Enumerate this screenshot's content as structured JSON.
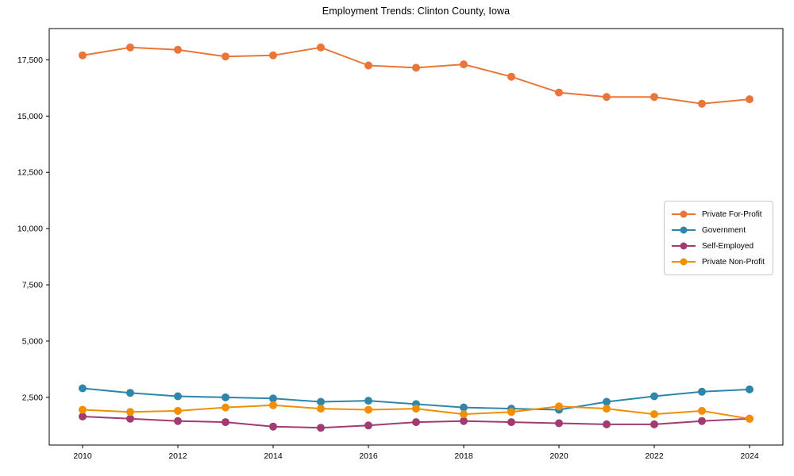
{
  "chart_data": {
    "type": "line",
    "title": "Employment Trends: Clinton County, Iowa",
    "xlabel": "",
    "ylabel": "",
    "x": [
      2010,
      2011,
      2012,
      2013,
      2014,
      2015,
      2016,
      2017,
      2018,
      2019,
      2020,
      2021,
      2022,
      2023,
      2024
    ],
    "series": [
      {
        "name": "Private For-Profit",
        "color": "#E8763B",
        "values": [
          17700,
          18050,
          17950,
          17650,
          17700,
          18050,
          17250,
          17150,
          17300,
          16750,
          16050,
          15850,
          15850,
          15550,
          15750
        ]
      },
      {
        "name": "Government",
        "color": "#2E86AB",
        "values": [
          2900,
          2700,
          2550,
          2500,
          2450,
          2300,
          2350,
          2200,
          2050,
          2000,
          1950,
          2300,
          2550,
          2750,
          2850
        ]
      },
      {
        "name": "Self-Employed",
        "color": "#A23B72",
        "values": [
          1650,
          1550,
          1450,
          1400,
          1200,
          1150,
          1250,
          1400,
          1450,
          1400,
          1350,
          1300,
          1300,
          1450,
          1550
        ]
      },
      {
        "name": "Private Non-Profit",
        "color": "#F18F01",
        "values": [
          1950,
          1850,
          1900,
          2050,
          2150,
          2000,
          1950,
          2000,
          1750,
          1850,
          2100,
          2000,
          1750,
          1900,
          1550
        ]
      }
    ],
    "xticks": [
      2010,
      2012,
      2014,
      2016,
      2018,
      2020,
      2022,
      2024
    ],
    "yticks": [
      2500,
      5000,
      7500,
      10000,
      12500,
      15000,
      17500
    ],
    "ytick_labels": [
      "2,500",
      "5,000",
      "7,500",
      "10,000",
      "12,500",
      "15,000",
      "17,500"
    ],
    "xlim": [
      2009.3,
      2024.7
    ],
    "ylim": [
      380,
      18890
    ],
    "grid": false,
    "legend_position": "center-right",
    "marker": "circle",
    "axis_color": "#000000",
    "background": "#ffffff"
  }
}
